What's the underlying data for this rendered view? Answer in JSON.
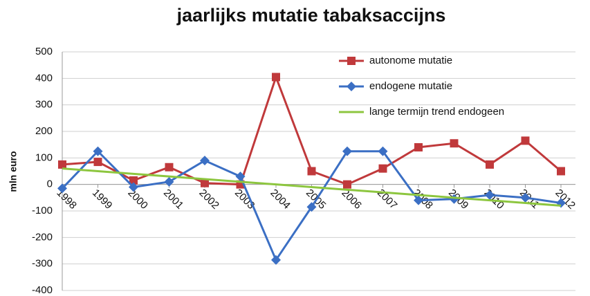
{
  "chart_data": {
    "type": "line",
    "title": "jaarlijks mutatie tabaksaccijns",
    "y_label": "mln euro",
    "categories": [
      "1998",
      "1999",
      "2000",
      "2001",
      "2002",
      "2003",
      "2004",
      "2005",
      "2006",
      "2007",
      "2008",
      "2009",
      "2010",
      "2011",
      "2012"
    ],
    "series": [
      {
        "name": "autonome mutatie",
        "color": "#c0393b",
        "marker": "square",
        "values": [
          75,
          85,
          15,
          65,
          5,
          0,
          405,
          50,
          0,
          60,
          140,
          155,
          75,
          165,
          50
        ]
      },
      {
        "name": "endogene mutatie",
        "color": "#3b6fc4",
        "marker": "diamond",
        "values": [
          -15,
          125,
          -10,
          10,
          90,
          30,
          -285,
          -85,
          125,
          125,
          -60,
          -55,
          -40,
          -50,
          -70
        ]
      },
      {
        "name": "lange termijn trend endogeen",
        "color": "#8dc63f",
        "marker": "none",
        "values": [
          60,
          50,
          40,
          30,
          20,
          10,
          0,
          -10,
          -20,
          -30,
          -40,
          -50,
          -60,
          -70,
          -80
        ]
      }
    ],
    "ylim": [
      -400,
      500
    ],
    "yticks": [
      -400,
      -300,
      -200,
      -100,
      0,
      100,
      200,
      300,
      400,
      500
    ],
    "grid": true,
    "legend": "top-right"
  }
}
